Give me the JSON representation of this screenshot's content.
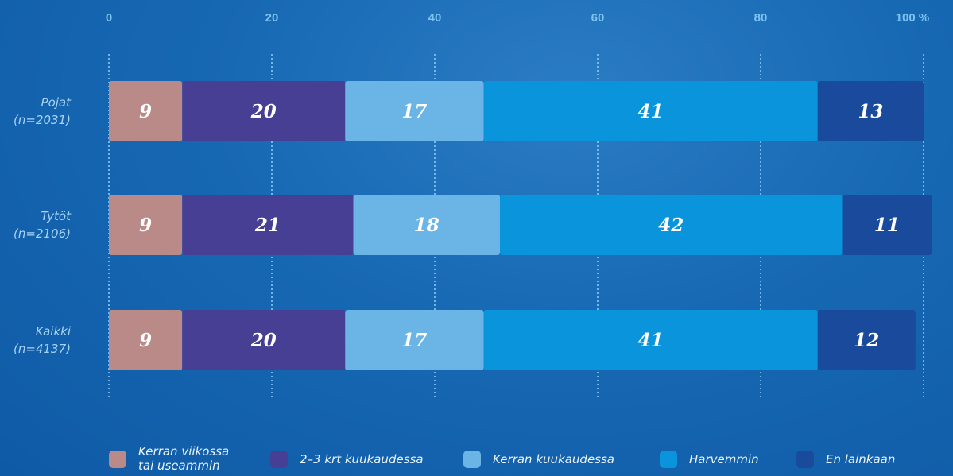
{
  "chart_data": {
    "type": "stacked-bar-horizontal",
    "categories": [
      "Pojat\n(n=2031)",
      "Tytöt\n(n=2106)",
      "Kaikki\n(n=4137)"
    ],
    "series": [
      {
        "name": "Kerran viikossa\ntai useammin",
        "color": "#b98a88",
        "values": [
          9,
          9,
          9
        ]
      },
      {
        "name": "2–3 krt kuukaudessa",
        "color": "#463f94",
        "values": [
          20,
          21,
          20
        ]
      },
      {
        "name": "Kerran kuukaudessa",
        "color": "#6ab4e6",
        "values": [
          17,
          18,
          17
        ]
      },
      {
        "name": "Harvemmin",
        "color": "#0a94dc",
        "values": [
          41,
          42,
          41
        ]
      },
      {
        "name": "En lainkaan",
        "color": "#1a4a9c",
        "values": [
          13,
          11,
          12
        ]
      }
    ],
    "xlim": [
      0,
      100
    ],
    "xticks": [
      0,
      20,
      40,
      60,
      80,
      {
        "value": 100,
        "label": "100 %"
      }
    ],
    "grid": true
  }
}
